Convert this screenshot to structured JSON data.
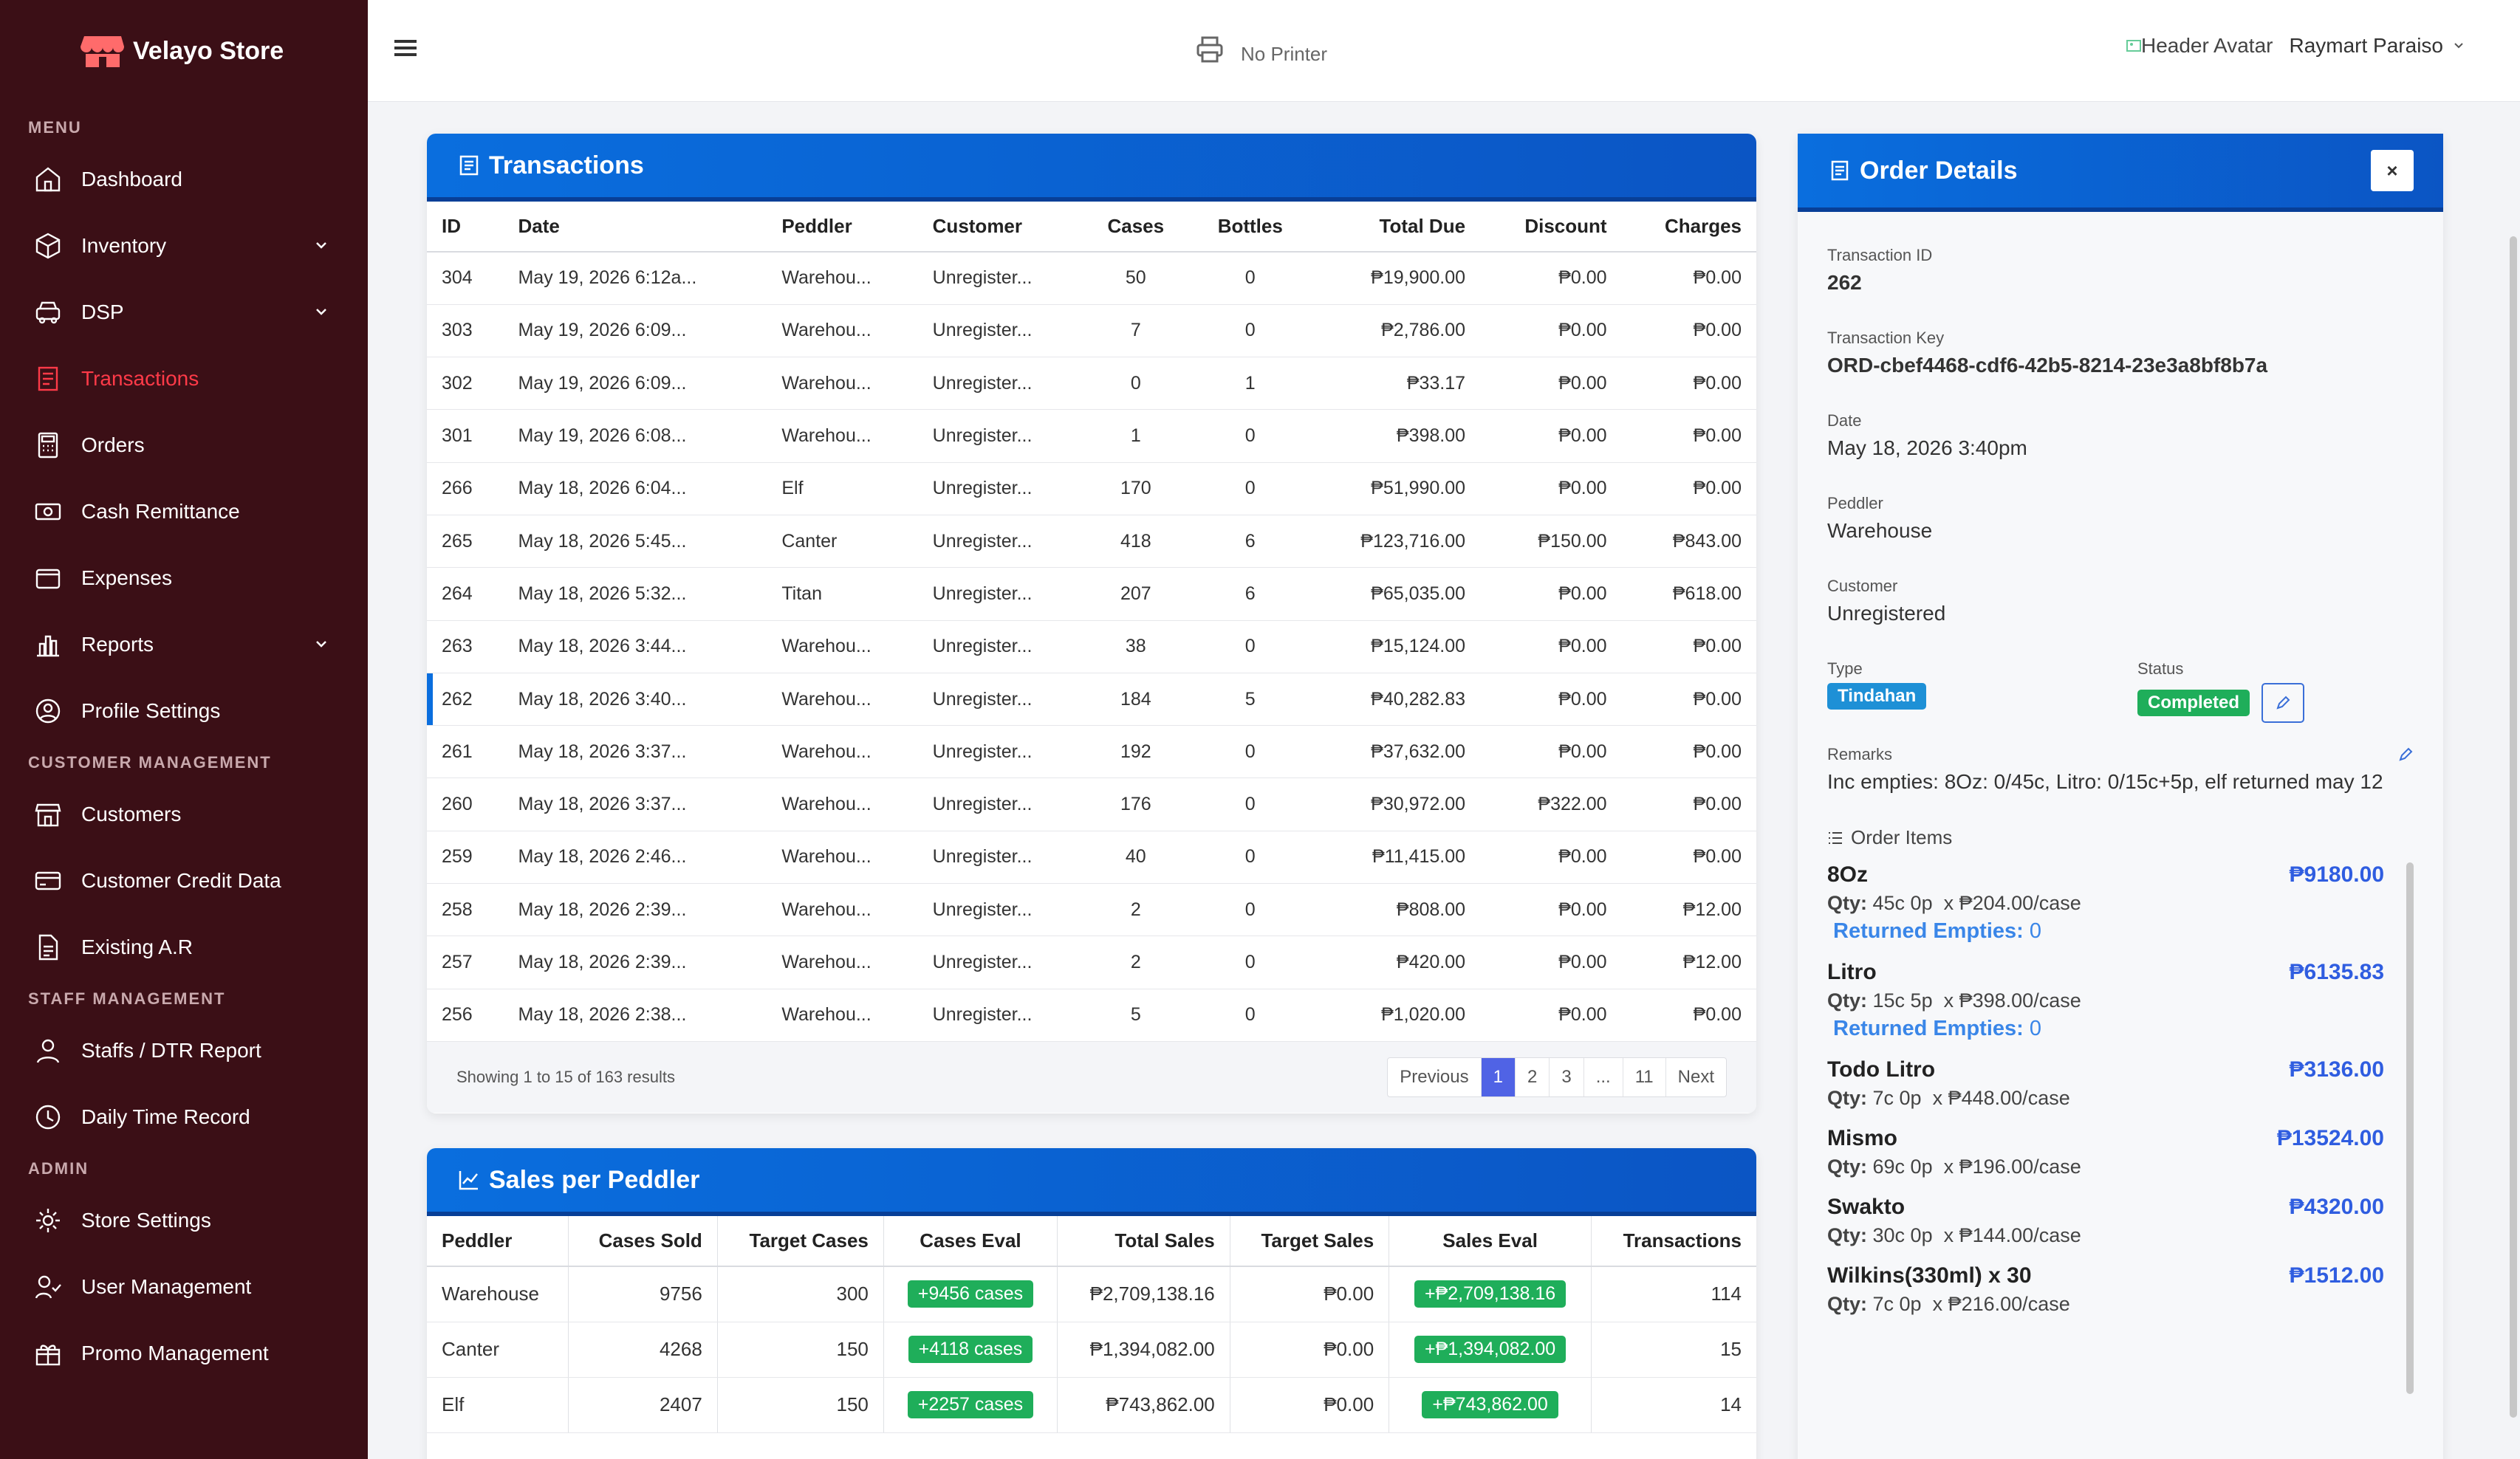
{
  "brand": {
    "name": "Velayo Store"
  },
  "sidebar": {
    "sections": [
      {
        "title": "MENU",
        "items": [
          {
            "label": "Dashboard",
            "icon": "home-icon"
          },
          {
            "label": "Inventory",
            "icon": "box-icon",
            "chevron": true
          },
          {
            "label": "DSP",
            "icon": "car-icon",
            "chevron": true
          },
          {
            "label": "Transactions",
            "icon": "receipt-icon",
            "active": true
          },
          {
            "label": "Orders",
            "icon": "calculator-icon"
          },
          {
            "label": "Cash Remittance",
            "icon": "cash-icon"
          },
          {
            "label": "Expenses",
            "icon": "wallet-icon"
          },
          {
            "label": "Reports",
            "icon": "chart-icon",
            "chevron": true
          },
          {
            "label": "Profile Settings",
            "icon": "user-circle-icon"
          }
        ]
      },
      {
        "title": "CUSTOMER MANAGEMENT",
        "items": [
          {
            "label": "Customers",
            "icon": "store-icon"
          },
          {
            "label": "Customer Credit Data",
            "icon": "credit-card-icon"
          },
          {
            "label": "Existing A.R",
            "icon": "document-icon"
          }
        ]
      },
      {
        "title": "STAFF MANAGEMENT",
        "items": [
          {
            "label": "Staffs / DTR Report",
            "icon": "person-icon"
          },
          {
            "label": "Daily Time Record",
            "icon": "clock-icon"
          }
        ]
      },
      {
        "title": "ADMIN",
        "items": [
          {
            "label": "Store Settings",
            "icon": "gear-icon"
          },
          {
            "label": "User Management",
            "icon": "user-check-icon"
          },
          {
            "label": "Promo Management",
            "icon": "gift-icon"
          }
        ]
      }
    ]
  },
  "header": {
    "printer": "No Printer",
    "avatar_alt": "Header Avatar",
    "user_name": "Raymart Paraiso"
  },
  "transactions": {
    "title": "Transactions",
    "columns": [
      "ID",
      "Date",
      "Peddler",
      "Customer",
      "Cases",
      "Bottles",
      "Total Due",
      "Discount",
      "Charges"
    ],
    "rows": [
      [
        "304",
        "May 19, 2026 6:12a...",
        "Warehou...",
        "Unregister...",
        "50",
        "0",
        "₱19,900.00",
        "₱0.00",
        "₱0.00"
      ],
      [
        "303",
        "May 19, 2026 6:09...",
        "Warehou...",
        "Unregister...",
        "7",
        "0",
        "₱2,786.00",
        "₱0.00",
        "₱0.00"
      ],
      [
        "302",
        "May 19, 2026 6:09...",
        "Warehou...",
        "Unregister...",
        "0",
        "1",
        "₱33.17",
        "₱0.00",
        "₱0.00"
      ],
      [
        "301",
        "May 19, 2026 6:08...",
        "Warehou...",
        "Unregister...",
        "1",
        "0",
        "₱398.00",
        "₱0.00",
        "₱0.00"
      ],
      [
        "266",
        "May 18, 2026 6:04...",
        "Elf",
        "Unregister...",
        "170",
        "0",
        "₱51,990.00",
        "₱0.00",
        "₱0.00"
      ],
      [
        "265",
        "May 18, 2026 5:45...",
        "Canter",
        "Unregister...",
        "418",
        "6",
        "₱123,716.00",
        "₱150.00",
        "₱843.00"
      ],
      [
        "264",
        "May 18, 2026 5:32...",
        "Titan",
        "Unregister...",
        "207",
        "6",
        "₱65,035.00",
        "₱0.00",
        "₱618.00"
      ],
      [
        "263",
        "May 18, 2026 3:44...",
        "Warehou...",
        "Unregister...",
        "38",
        "0",
        "₱15,124.00",
        "₱0.00",
        "₱0.00"
      ],
      [
        "262",
        "May 18, 2026 3:40...",
        "Warehou...",
        "Unregister...",
        "184",
        "5",
        "₱40,282.83",
        "₱0.00",
        "₱0.00"
      ],
      [
        "261",
        "May 18, 2026 3:37...",
        "Warehou...",
        "Unregister...",
        "192",
        "0",
        "₱37,632.00",
        "₱0.00",
        "₱0.00"
      ],
      [
        "260",
        "May 18, 2026 3:37...",
        "Warehou...",
        "Unregister...",
        "176",
        "0",
        "₱30,972.00",
        "₱322.00",
        "₱0.00"
      ],
      [
        "259",
        "May 18, 2026 2:46...",
        "Warehou...",
        "Unregister...",
        "40",
        "0",
        "₱11,415.00",
        "₱0.00",
        "₱0.00"
      ],
      [
        "258",
        "May 18, 2026 2:39...",
        "Warehou...",
        "Unregister...",
        "2",
        "0",
        "₱808.00",
        "₱0.00",
        "₱12.00"
      ],
      [
        "257",
        "May 18, 2026 2:39...",
        "Warehou...",
        "Unregister...",
        "2",
        "0",
        "₱420.00",
        "₱0.00",
        "₱12.00"
      ],
      [
        "256",
        "May 18, 2026 2:38...",
        "Warehou...",
        "Unregister...",
        "5",
        "0",
        "₱1,020.00",
        "₱0.00",
        "₱0.00"
      ]
    ],
    "selected_id": "262",
    "showing": "Showing 1 to 15 of 163 results",
    "pager": [
      "Previous",
      "1",
      "2",
      "3",
      "...",
      "11",
      "Next"
    ],
    "current_page": "1"
  },
  "sales_per_peddler": {
    "title": "Sales per Peddler",
    "columns": [
      "Peddler",
      "Cases Sold",
      "Target Cases",
      "Cases Eval",
      "Total Sales",
      "Target Sales",
      "Sales Eval",
      "Transactions"
    ],
    "rows": [
      [
        "Warehouse",
        "9756",
        "300",
        "+9456 cases",
        "₱2,709,138.16",
        "₱0.00",
        "+₱2,709,138.16",
        "114"
      ],
      [
        "Canter",
        "4268",
        "150",
        "+4118 cases",
        "₱1,394,082.00",
        "₱0.00",
        "+₱1,394,082.00",
        "15"
      ],
      [
        "Elf",
        "2407",
        "150",
        "+2257 cases",
        "₱743,862.00",
        "₱0.00",
        "+₱743,862.00",
        "14"
      ]
    ]
  },
  "order_details": {
    "title": "Order Details",
    "close": "×",
    "transaction_id_label": "Transaction ID",
    "transaction_id": "262",
    "transaction_key_label": "Transaction Key",
    "transaction_key": "ORD-cbef4468-cdf6-42b5-8214-23e3a8bf8b7a",
    "date_label": "Date",
    "date": "May 18, 2026 3:40pm",
    "peddler_label": "Peddler",
    "peddler": "Warehouse",
    "customer_label": "Customer",
    "customer": "Unregistered",
    "type_label": "Type",
    "type": "Tindahan",
    "status_label": "Status",
    "status": "Completed",
    "remarks_label": "Remarks",
    "remarks": "Inc empties: 8Oz: 0/45c, Litro: 0/15c+5p, elf returned may 12",
    "items_label": "Order Items",
    "items": [
      {
        "name": "8Oz",
        "price": "₱9180.00",
        "qty": "45c 0p",
        "unit": "x ₱204.00/case",
        "returned": "0"
      },
      {
        "name": "Litro",
        "price": "₱6135.83",
        "qty": "15c 5p",
        "unit": "x ₱398.00/case",
        "returned": "0"
      },
      {
        "name": "Todo Litro",
        "price": "₱3136.00",
        "qty": "7c 0p",
        "unit": "x ₱448.00/case"
      },
      {
        "name": "Mismo",
        "price": "₱13524.00",
        "qty": "69c 0p",
        "unit": "x ₱196.00/case"
      },
      {
        "name": "Swakto",
        "price": "₱4320.00",
        "qty": "30c 0p",
        "unit": "x ₱144.00/case"
      },
      {
        "name": "Wilkins(330ml) x 30",
        "price": "₱1512.00",
        "qty": "7c 0p",
        "unit": "x ₱216.00/case"
      }
    ],
    "qty_label": "Qty:",
    "returned_label": "Returned Empties:"
  },
  "colors": {
    "sidebar_bg": "#3b0f16",
    "active": "#ff3a48",
    "header_blue": "#0a6ede",
    "badge_green": "#1fae5a",
    "price_blue": "#2f5de0",
    "type_badge": "#1e90d6"
  }
}
